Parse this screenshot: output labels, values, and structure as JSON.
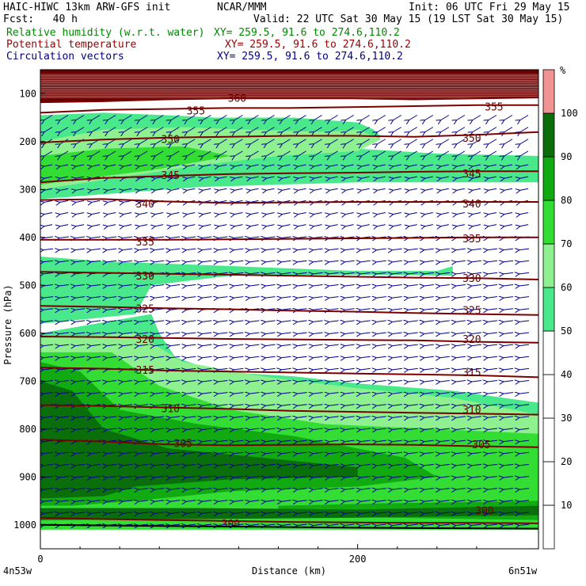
{
  "header": {
    "model": "HAIC-HIWC 13km ARW-GFS init",
    "org": "NCAR/MMM",
    "init": "Init: 06 UTC Fri 29 May 15",
    "fcst": "Fcst:   40 h",
    "valid": "Valid: 22 UTC Sat 30 May 15 (19 LST Sat 30 May 15)",
    "field1": "Relative humidity (w.r.t. water)",
    "field1_xy": "XY= 259.5, 91.6 to 274.6,110.2",
    "field2": "Potential temperature",
    "field2_xy": "XY= 259.5, 91.6 to 274.6,110.2",
    "field3": "Circulation vectors",
    "field3_xy": "XY= 259.5, 91.6 to 274.6,110.2"
  },
  "colors": {
    "rh_50_60": "#49e88a",
    "rh_60_70": "#8ef08e",
    "rh_70_80": "#33dd33",
    "rh_80_90": "#11aa11",
    "rh_90_100": "#0a6e0a",
    "rh_100_plus": "#f29393",
    "theta_contour": "#7a0000",
    "vector": "#000090",
    "top_band": "#6b0000"
  },
  "chart_data": {
    "type": "heatmap",
    "title": "",
    "xlabel": "Distance (km)",
    "ylabel": "Pressure (hPa)",
    "xlim": [
      0,
      314
    ],
    "ylim": [
      1050,
      50
    ],
    "x_ticks": [
      0,
      200
    ],
    "x_tick_labels": [
      "0",
      "200"
    ],
    "x_end_labels": [
      "4n53w",
      "6n51w"
    ],
    "y_ticks": [
      100,
      200,
      300,
      400,
      500,
      600,
      700,
      800,
      900,
      1000
    ],
    "y_tick_labels": [
      "100",
      "200",
      "300",
      "400",
      "500",
      "600",
      "700",
      "800",
      "900",
      "1000"
    ],
    "colorbar": {
      "unit": "%",
      "levels": [
        10,
        20,
        30,
        40,
        50,
        60,
        70,
        80,
        90,
        100
      ],
      "labels": [
        "10",
        "20",
        "30",
        "40",
        "50",
        "60",
        "70",
        "80",
        "90",
        "100"
      ]
    },
    "theta_contours": [
      {
        "label": "300",
        "p": [
          985,
          988,
          990,
          992,
          994,
          995,
          996,
          996,
          997
        ]
      },
      {
        "label": "305",
        "p": [
          822,
          826,
          832,
          834,
          833,
          832,
          833,
          836,
          838
        ]
      },
      {
        "label": "310",
        "p": [
          750,
          752,
          755,
          758,
          762,
          764,
          766,
          768,
          770
        ]
      },
      {
        "label": "315",
        "p": [
          672,
          674,
          678,
          680,
          682,
          684,
          686,
          688,
          692
        ]
      },
      {
        "label": "320",
        "p": [
          607,
          608,
          610,
          612,
          613,
          614,
          615,
          618,
          620
        ]
      },
      {
        "label": "325",
        "p": [
          543,
          545,
          548,
          550,
          553,
          555,
          558,
          560,
          562
        ]
      },
      {
        "label": "330",
        "p": [
          472,
          474,
          476,
          478,
          480,
          482,
          484,
          485,
          488
        ]
      },
      {
        "label": "335",
        "p": [
          405,
          405,
          405,
          404,
          403,
          402,
          401,
          400,
          400
        ]
      },
      {
        "label": "340",
        "p": [
          322,
          320,
          325,
          328,
          327,
          326,
          326,
          326,
          326
        ]
      },
      {
        "label": "345",
        "p": [
          285,
          276,
          272,
          268,
          266,
          265,
          263,
          262,
          262
        ]
      },
      {
        "label": "350",
        "p": [
          202,
          196,
          192,
          190,
          188,
          188,
          190,
          186,
          180
        ]
      },
      {
        "label": "355",
        "p": [
          140,
          134,
          132,
          130,
          130,
          128,
          126,
          124,
          124
        ]
      },
      {
        "label": "360",
        "p": [
          118,
          116,
          112,
          110,
          110,
          110,
          112,
          110,
          108
        ]
      }
    ],
    "theta_label_positions": [
      {
        "label": "300",
        "x": 120,
        "p": 1005
      },
      {
        "label": "300",
        "x": 280,
        "p": 978
      },
      {
        "label": "305",
        "x": 90,
        "p": 838
      },
      {
        "label": "305",
        "x": 278,
        "p": 840
      },
      {
        "label": "310",
        "x": 82,
        "p": 765
      },
      {
        "label": "310",
        "x": 272,
        "p": 767
      },
      {
        "label": "315",
        "x": 66,
        "p": 685
      },
      {
        "label": "315",
        "x": 272,
        "p": 690
      },
      {
        "label": "320",
        "x": 66,
        "p": 620
      },
      {
        "label": "320",
        "x": 272,
        "p": 620
      },
      {
        "label": "325",
        "x": 66,
        "p": 557
      },
      {
        "label": "325",
        "x": 272,
        "p": 560
      },
      {
        "label": "330",
        "x": 66,
        "p": 488
      },
      {
        "label": "330",
        "x": 272,
        "p": 493
      },
      {
        "label": "335",
        "x": 66,
        "p": 417
      },
      {
        "label": "335",
        "x": 272,
        "p": 410
      },
      {
        "label": "340",
        "x": 66,
        "p": 338
      },
      {
        "label": "340",
        "x": 272,
        "p": 338
      },
      {
        "label": "345",
        "x": 82,
        "p": 278
      },
      {
        "label": "345",
        "x": 272,
        "p": 275
      },
      {
        "label": "350",
        "x": 82,
        "p": 203
      },
      {
        "label": "350",
        "x": 272,
        "p": 200
      },
      {
        "label": "355",
        "x": 98,
        "p": 143
      },
      {
        "label": "355",
        "x": 286,
        "p": 135
      },
      {
        "label": "360",
        "x": 124,
        "p": 117
      }
    ],
    "rh_bands": [
      {
        "level": "50-60",
        "color_key": "rh_50_60",
        "top": [
          [
            0,
            145
          ],
          [
            40,
            140
          ],
          [
            80,
            145
          ],
          [
            110,
            150
          ],
          [
            160,
            150
          ],
          [
            200,
            160
          ],
          [
            210,
            175
          ],
          [
            215,
            190
          ],
          [
            200,
            215
          ],
          [
            250,
            225
          ],
          [
            314,
            230
          ]
        ],
        "bottom": [
          [
            314,
            285
          ],
          [
            200,
            285
          ],
          [
            100,
            295
          ],
          [
            0,
            320
          ]
        ]
      },
      {
        "level": "50-60",
        "color_key": "rh_50_60",
        "top": [
          [
            0,
            440
          ],
          [
            40,
            450
          ],
          [
            120,
            460
          ],
          [
            160,
            465
          ],
          [
            200,
            470
          ],
          [
            250,
            470
          ],
          [
            260,
            460
          ]
        ],
        "bottom": [
          [
            260,
            480
          ],
          [
            200,
            478
          ],
          [
            120,
            480
          ],
          [
            70,
            500
          ],
          [
            60,
            560
          ],
          [
            0,
            580
          ]
        ]
      },
      {
        "level": "50-60",
        "color_key": "rh_50_60",
        "top": [
          [
            0,
            600
          ],
          [
            70,
            560
          ],
          [
            75,
            600
          ],
          [
            85,
            650
          ],
          [
            110,
            680
          ],
          [
            160,
            690
          ],
          [
            200,
            705
          ],
          [
            260,
            720
          ],
          [
            314,
            745
          ]
        ],
        "bottom": [
          [
            314,
            1010
          ],
          [
            0,
            1010
          ]
        ]
      }
    ],
    "rh_fill_regions": [
      {
        "level": "60-70",
        "color_key": "rh_60_70",
        "poly": [
          [
            0,
            200
          ],
          [
            40,
            175
          ],
          [
            90,
            170
          ],
          [
            130,
            175
          ],
          [
            180,
            180
          ],
          [
            200,
            175
          ],
          [
            215,
            195
          ],
          [
            200,
            220
          ],
          [
            150,
            230
          ],
          [
            100,
            250
          ],
          [
            40,
            280
          ],
          [
            0,
            300
          ]
        ]
      },
      {
        "level": "60-70",
        "color_key": "rh_60_70",
        "poly": [
          [
            0,
            610
          ],
          [
            60,
            600
          ],
          [
            90,
            660
          ],
          [
            140,
            690
          ],
          [
            200,
            715
          ],
          [
            260,
            735
          ],
          [
            314,
            770
          ],
          [
            314,
            1010
          ],
          [
            0,
            1010
          ]
        ]
      },
      {
        "level": "70-80",
        "color_key": "rh_70_80",
        "poly": [
          [
            0,
            230
          ],
          [
            40,
            215
          ],
          [
            90,
            210
          ],
          [
            120,
            230
          ],
          [
            70,
            260
          ],
          [
            20,
            280
          ],
          [
            0,
            290
          ]
        ]
      },
      {
        "level": "70-80",
        "color_key": "rh_70_80",
        "poly": [
          [
            0,
            640
          ],
          [
            45,
            640
          ],
          [
            75,
            710
          ],
          [
            120,
            760
          ],
          [
            180,
            790
          ],
          [
            250,
            800
          ],
          [
            314,
            810
          ],
          [
            314,
            1010
          ],
          [
            0,
            1010
          ]
        ]
      },
      {
        "level": "80-90",
        "color_key": "rh_80_90",
        "poly": [
          [
            0,
            660
          ],
          [
            25,
            680
          ],
          [
            50,
            760
          ],
          [
            100,
            790
          ],
          [
            160,
            815
          ],
          [
            230,
            860
          ],
          [
            250,
            900
          ],
          [
            200,
            920
          ],
          [
            120,
            930
          ],
          [
            60,
            950
          ],
          [
            20,
            960
          ],
          [
            0,
            960
          ]
        ]
      },
      {
        "level": "80-90",
        "color_key": "rh_80_90",
        "poly": [
          [
            150,
            960
          ],
          [
            220,
            955
          ],
          [
            314,
            950
          ],
          [
            314,
            990
          ],
          [
            220,
            985
          ],
          [
            150,
            980
          ]
        ]
      },
      {
        "level": "90-100",
        "color_key": "rh_90_100",
        "poly": [
          [
            0,
            700
          ],
          [
            20,
            720
          ],
          [
            40,
            800
          ],
          [
            80,
            840
          ],
          [
            140,
            860
          ],
          [
            200,
            880
          ],
          [
            200,
            900
          ],
          [
            120,
            905
          ],
          [
            60,
            920
          ],
          [
            40,
            940
          ],
          [
            0,
            945
          ]
        ]
      },
      {
        "level": "90-100",
        "color_key": "rh_90_100",
        "poly": [
          [
            0,
            965
          ],
          [
            100,
            965
          ],
          [
            200,
            968
          ],
          [
            314,
            960
          ],
          [
            314,
            980
          ],
          [
            200,
            985
          ],
          [
            100,
            988
          ],
          [
            0,
            990
          ]
        ]
      }
    ],
    "vector_grid": {
      "x_start": 5,
      "x_step": 10,
      "p_start": 150,
      "p_step": 25,
      "p_end": 1000
    },
    "terrain": [
      {
        "x": 0,
        "p": 1000
      },
      {
        "x": 100,
        "p": 1003
      },
      {
        "x": 200,
        "p": 1006
      },
      {
        "x": 314,
        "p": 1008
      }
    ]
  }
}
